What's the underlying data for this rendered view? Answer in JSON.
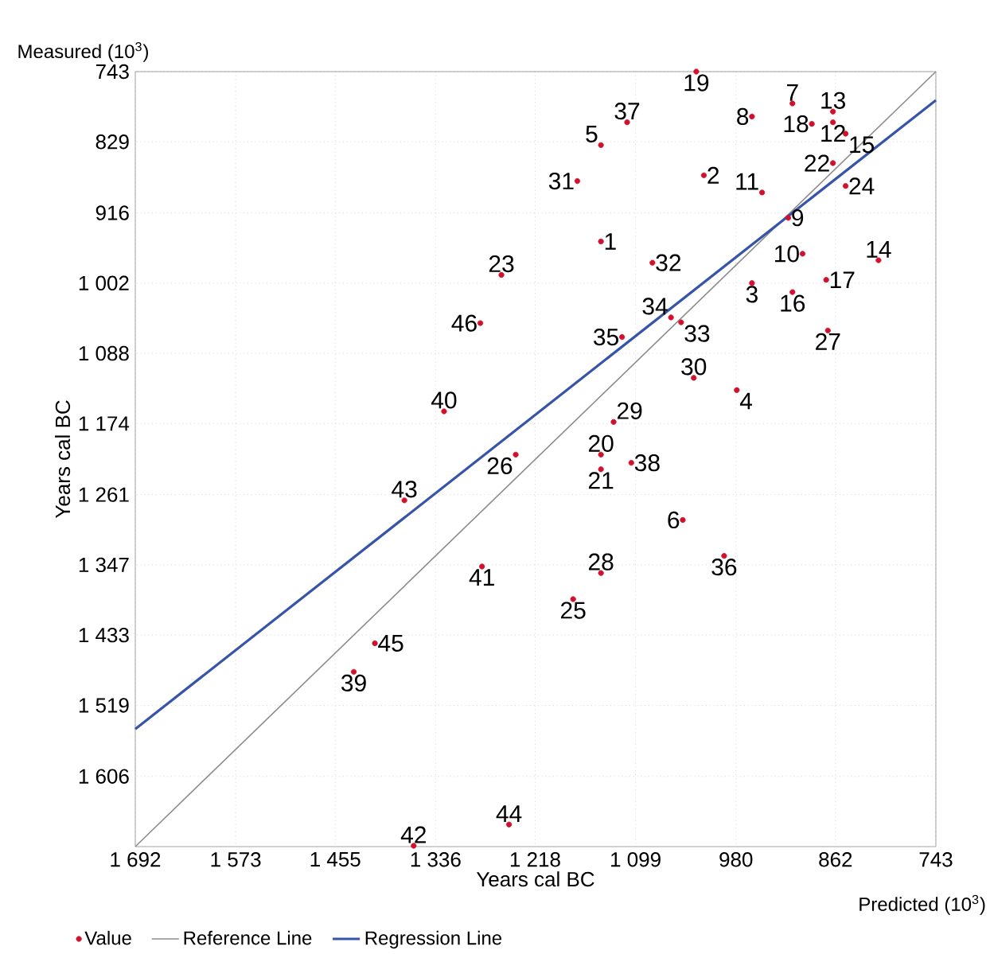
{
  "chart_data": {
    "type": "scatter",
    "xlabel": "Years cal BC",
    "ylabel": "Years cal BC",
    "xlim": [
      1692,
      743
    ],
    "ylim": [
      1692,
      743
    ],
    "xticks": [
      {
        "value": 1692,
        "label": "1 692"
      },
      {
        "value": 1573,
        "label": "1 573"
      },
      {
        "value": 1455,
        "label": "1 455"
      },
      {
        "value": 1336,
        "label": "1 336"
      },
      {
        "value": 1218,
        "label": "1 218"
      },
      {
        "value": 1099,
        "label": "1 099"
      },
      980,
      862,
      743
    ],
    "yticks": [
      743,
      829,
      916,
      {
        "value": 1002,
        "label": "1 002"
      },
      {
        "value": 1088,
        "label": "1 088"
      },
      {
        "value": 1174,
        "label": "1 174"
      },
      {
        "value": 1261,
        "label": "1 261"
      },
      {
        "value": 1347,
        "label": "1 347"
      },
      {
        "value": 1433,
        "label": "1 433"
      },
      {
        "value": 1519,
        "label": "1 519"
      },
      {
        "value": 1606,
        "label": "1 606"
      }
    ],
    "grid": true,
    "legend": "bottom",
    "series": [
      {
        "name": "Value",
        "type": "scatter",
        "marker": "circle",
        "color": "#d0102c",
        "x": [
          1140,
          1018,
          961,
          979,
          1140,
          1043,
          913,
          961,
          918,
          901,
          949,
          865,
          865,
          811,
          850,
          913,
          873,
          890,
          1027,
          1140,
          1140,
          865,
          1258,
          850,
          1173,
          1241,
          871,
          1140,
          1125,
          1030,
          1168,
          1079,
          1045,
          1057,
          1115,
          994,
          1109,
          1104,
          1433,
          1326,
          1281,
          1362,
          1373,
          1249,
          1408,
          1283
        ],
        "values": [
          951,
          870,
          1002,
          1133,
          833,
          1292,
          782,
          798,
          922,
          966,
          891,
          805,
          792,
          974,
          819,
          1013,
          998,
          807,
          743,
          1212,
          1230,
          855,
          992,
          883,
          1389,
          1212,
          1060,
          1357,
          1172,
          1118,
          877,
          977,
          1050,
          1044,
          1068,
          1336,
          805,
          1222,
          1478,
          1159,
          1349,
          1691,
          1268,
          1665,
          1443,
          1051
        ]
      },
      {
        "name": "Reference Line",
        "type": "line",
        "color": "#8c8c8c",
        "x": [
          1692,
          743
        ],
        "values": [
          1692,
          743
        ]
      },
      {
        "name": "Regression Line",
        "type": "line",
        "color": "#3654a8",
        "x": [
          1692,
          743
        ],
        "values": [
          1548,
          778
        ]
      }
    ],
    "annotations": [
      "Measured (10$^{3}$)",
      "Predicted (10$^{3}$)",
      {
        "text": "1",
        "x": 1140,
        "y": 951
      },
      {
        "text": "2",
        "x": 1018,
        "y": 870
      },
      {
        "text": "3",
        "x": 961,
        "y": 1002
      },
      {
        "text": "4",
        "x": 979,
        "y": 1133
      },
      {
        "text": "5",
        "x": 1140,
        "y": 833
      },
      {
        "text": "6",
        "x": 1043,
        "y": 1292
      },
      {
        "text": "7",
        "x": 913,
        "y": 782
      },
      {
        "text": "8",
        "x": 961,
        "y": 798
      },
      {
        "text": "9",
        "x": 918,
        "y": 922
      },
      {
        "text": "10",
        "x": 901,
        "y": 966
      },
      {
        "text": "11",
        "x": 949,
        "y": 891
      },
      {
        "text": "12",
        "x": 865,
        "y": 805
      },
      {
        "text": "13",
        "x": 865,
        "y": 792
      },
      {
        "text": "14",
        "x": 811,
        "y": 974
      },
      {
        "text": "15",
        "x": 850,
        "y": 819
      },
      {
        "text": "16",
        "x": 913,
        "y": 1013
      },
      {
        "text": "17",
        "x": 873,
        "y": 998
      },
      {
        "text": "18",
        "x": 890,
        "y": 807
      },
      {
        "text": "19",
        "x": 1027,
        "y": 743
      },
      {
        "text": "20",
        "x": 1140,
        "y": 1212
      },
      {
        "text": "21",
        "x": 1140,
        "y": 1230
      },
      {
        "text": "22",
        "x": 865,
        "y": 855
      },
      {
        "text": "23",
        "x": 1258,
        "y": 992
      },
      {
        "text": "24",
        "x": 850,
        "y": 883
      },
      {
        "text": "25",
        "x": 1173,
        "y": 1389
      },
      {
        "text": "26",
        "x": 1241,
        "y": 1212
      },
      {
        "text": "27",
        "x": 871,
        "y": 1060
      },
      {
        "text": "28",
        "x": 1140,
        "y": 1357
      },
      {
        "text": "29",
        "x": 1125,
        "y": 1172
      },
      {
        "text": "30",
        "x": 1030,
        "y": 1118
      },
      {
        "text": "31",
        "x": 1168,
        "y": 877
      },
      {
        "text": "32",
        "x": 1079,
        "y": 977
      },
      {
        "text": "33",
        "x": 1045,
        "y": 1050
      },
      {
        "text": "34",
        "x": 1057,
        "y": 1044
      },
      {
        "text": "35",
        "x": 1115,
        "y": 1068
      },
      {
        "text": "36",
        "x": 994,
        "y": 1336
      },
      {
        "text": "37",
        "x": 1109,
        "y": 805
      },
      {
        "text": "38",
        "x": 1104,
        "y": 1222
      },
      {
        "text": "39",
        "x": 1433,
        "y": 1478
      },
      {
        "text": "40",
        "x": 1326,
        "y": 1159
      },
      {
        "text": "41",
        "x": 1281,
        "y": 1349
      },
      {
        "text": "42",
        "x": 1362,
        "y": 1691
      },
      {
        "text": "43",
        "x": 1373,
        "y": 1268
      },
      {
        "text": "44",
        "x": 1249,
        "y": 1665
      },
      {
        "text": "45",
        "x": 1408,
        "y": 1443
      },
      {
        "text": "46",
        "x": 1283,
        "y": 1051
      }
    ]
  }
}
